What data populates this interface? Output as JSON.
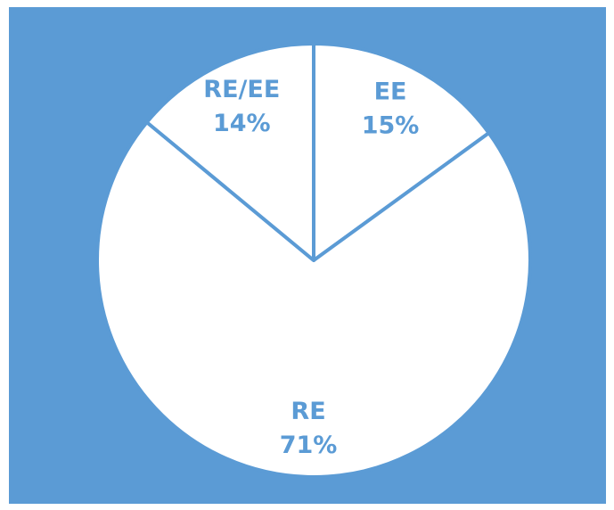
{
  "chart_data": {
    "type": "pie",
    "categories": [
      "EE",
      "RE",
      "RE/EE"
    ],
    "values": [
      15,
      71,
      14
    ],
    "value_labels": [
      "15%",
      "71%",
      "14%"
    ],
    "color": "#ffffff",
    "background": "#5b9bd5",
    "label_color": "#5b9bd5"
  }
}
